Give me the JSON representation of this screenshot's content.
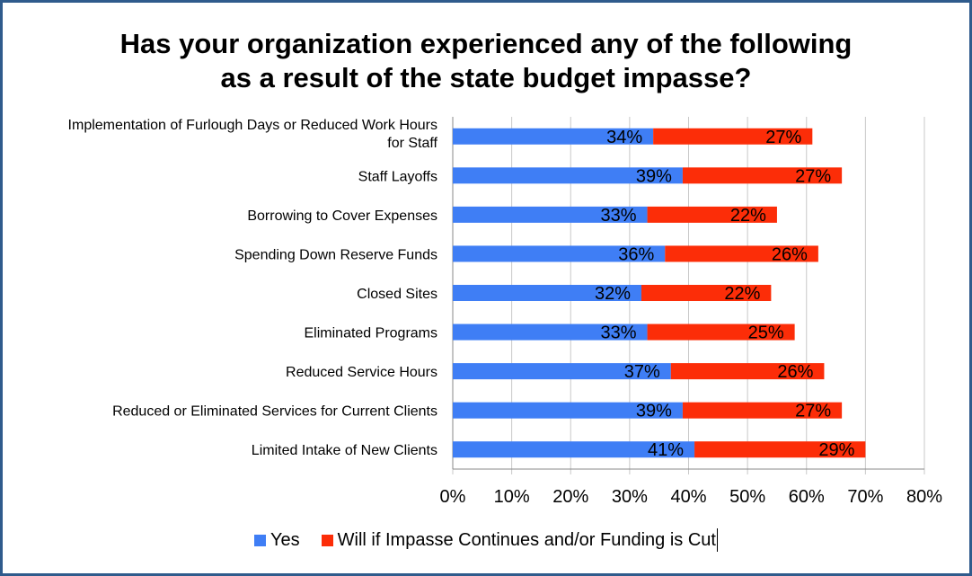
{
  "title_line1": "Has your organization experienced any of the following",
  "title_line2": "as a result of the state budget impasse?",
  "colors": {
    "yes": "#3f7ef5",
    "will": "#fc2d08",
    "grid": "#c8c8c8",
    "frame": "#2f5b8c"
  },
  "chart_data": {
    "type": "bar",
    "orientation": "horizontal",
    "stacked": true,
    "categories": [
      [
        "Implementation of Furlough Days or Reduced Work Hours",
        "for Staff"
      ],
      [
        "Staff Layoffs"
      ],
      [
        "Borrowing to Cover Expenses"
      ],
      [
        "Spending Down Reserve Funds"
      ],
      [
        "Closed Sites"
      ],
      [
        "Eliminated Programs"
      ],
      [
        "Reduced Service Hours"
      ],
      [
        "Reduced or Eliminated Services for Current Clients"
      ],
      [
        "Limited Intake of New Clients"
      ]
    ],
    "series": [
      {
        "name": "Yes",
        "values": [
          34,
          39,
          33,
          36,
          32,
          33,
          37,
          39,
          41
        ]
      },
      {
        "name": "Will if Impasse Continues and/or Funding is Cut",
        "values": [
          27,
          27,
          22,
          26,
          22,
          25,
          26,
          27,
          29
        ]
      }
    ],
    "xlim": [
      0,
      80
    ],
    "xticks": [
      "0%",
      "10%",
      "20%",
      "30%",
      "40%",
      "50%",
      "60%",
      "70%",
      "80%"
    ],
    "grid": true,
    "legend_position": "bottom"
  }
}
